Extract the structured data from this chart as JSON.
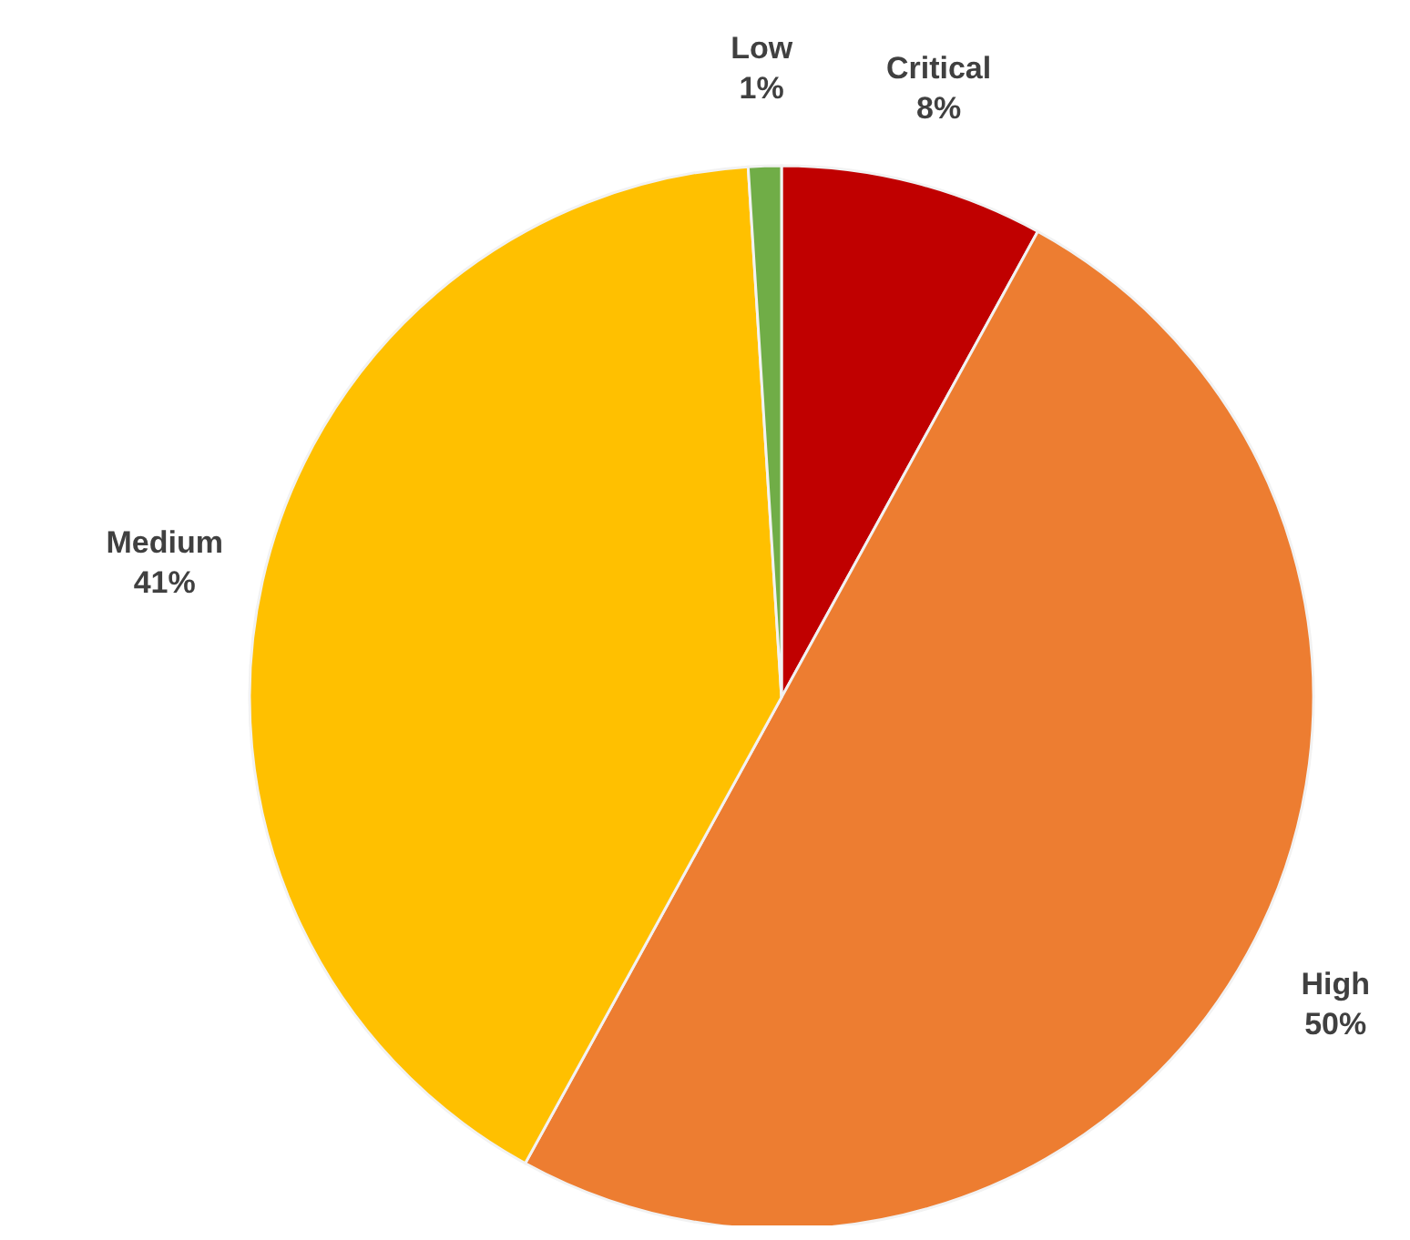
{
  "chart_data": {
    "type": "pie",
    "categories": [
      "Critical",
      "High",
      "Medium",
      "Low"
    ],
    "values": [
      8,
      50,
      41,
      1
    ],
    "colors": [
      "#c00000",
      "#ed7d31",
      "#ffc000",
      "#70ad47"
    ],
    "value_labels": [
      "8%",
      "50%",
      "41%",
      "1%"
    ],
    "legend": false
  }
}
